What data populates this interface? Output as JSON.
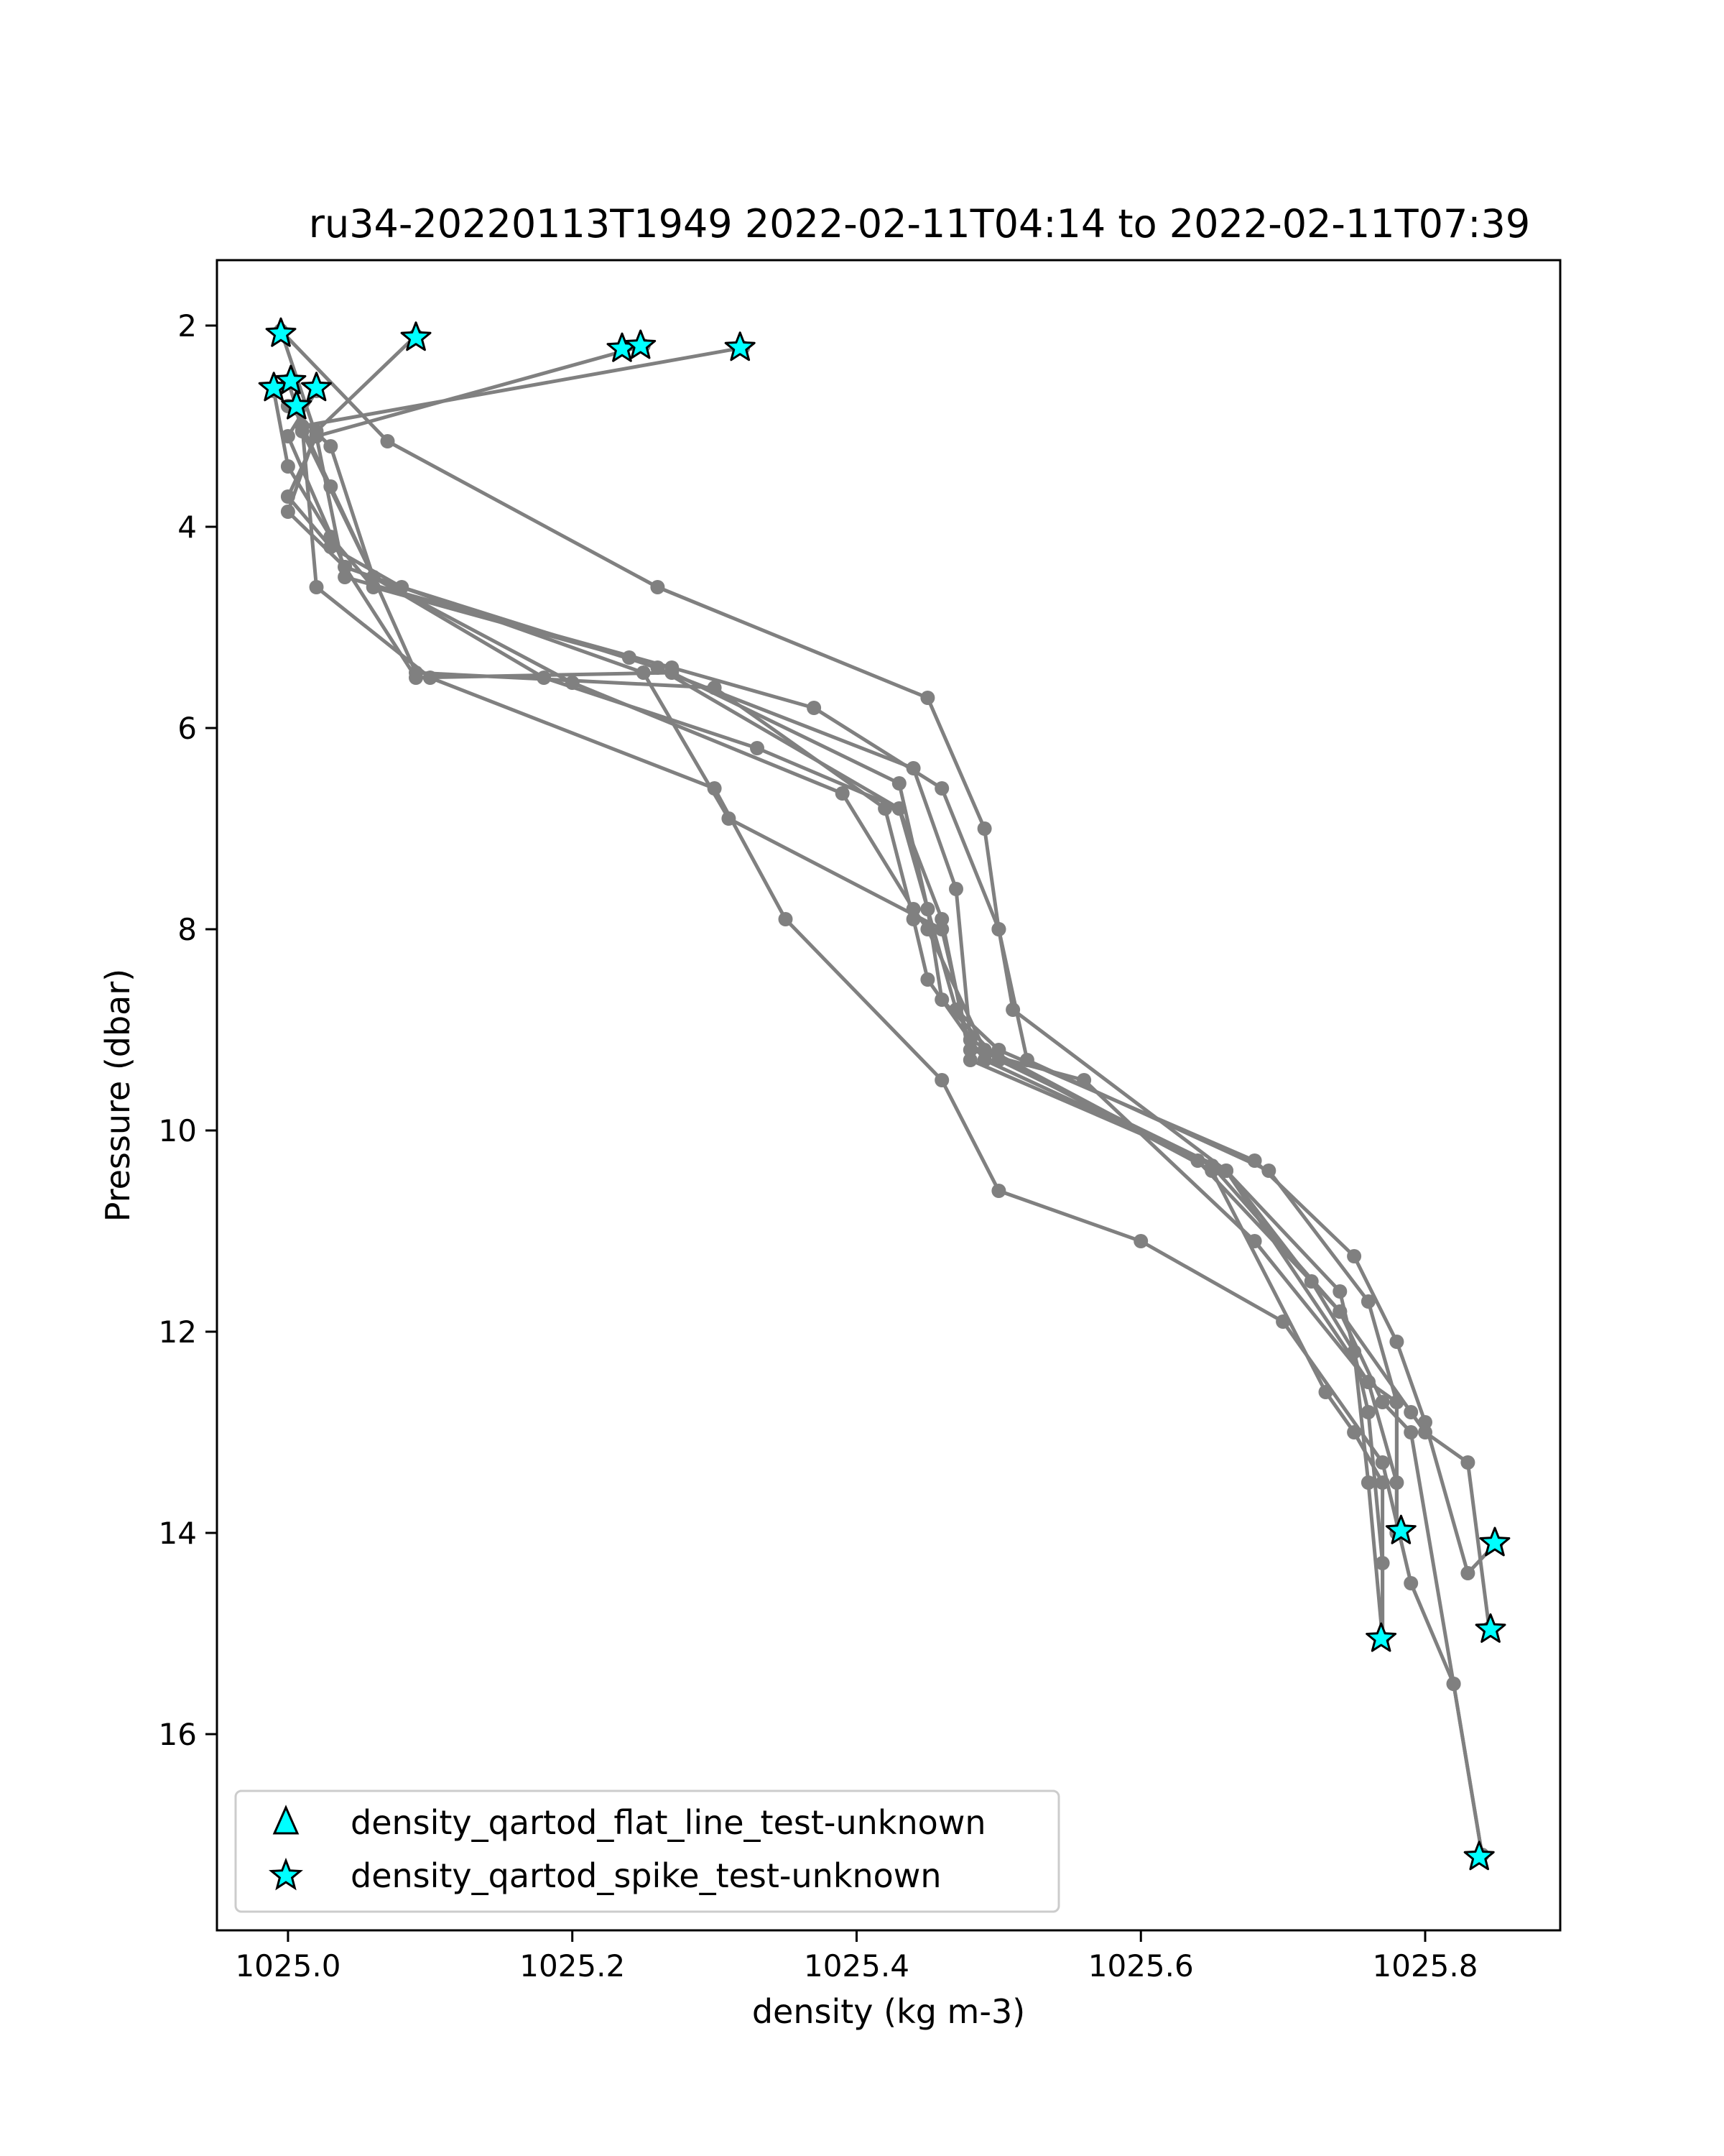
{
  "chart_data": {
    "type": "line",
    "title": "ru34-20220113T1949 2022-02-11T04:14 to 2022-02-11T07:39",
    "xlabel": "density (kg m-3)",
    "ylabel": "Pressure (dbar)",
    "xlim": [
      1024.95,
      1025.895
    ],
    "ylim": [
      17.95,
      1.35
    ],
    "y_inverted": true,
    "grid": false,
    "x_ticks": [
      1025.0,
      1025.2,
      1025.4,
      1025.6,
      1025.8
    ],
    "x_tick_labels": [
      "1025.0",
      "1025.2",
      "1025.4",
      "1025.6",
      "1025.8"
    ],
    "y_ticks": [
      2,
      4,
      6,
      8,
      10,
      12,
      14,
      16
    ],
    "y_tick_labels": [
      "2",
      "4",
      "6",
      "8",
      "10",
      "12",
      "14",
      "16"
    ],
    "line_color": "#808080",
    "marker_fill": "#00ffff",
    "legend": {
      "placement": "lower-left",
      "entries": [
        {
          "label": "density_qartod_flat_line_test-unknown",
          "marker": "triangle"
        },
        {
          "label": "density_qartod_spike_test-unknown",
          "marker": "star"
        }
      ]
    },
    "profiles": [
      {
        "x": [
          1025.0,
          1025.03,
          1025.06,
          1025.18,
          1025.33,
          1025.43,
          1025.45,
          1025.46,
          1025.5,
          1025.66,
          1025.76,
          1025.78,
          1025.78
        ],
        "y": [
          2.8,
          3.2,
          4.5,
          5.5,
          6.2,
          6.8,
          7.8,
          8.7,
          9.3,
          10.4,
          12.5,
          13.5,
          14.0
        ]
      },
      {
        "x": [
          1024.995,
          1025.02,
          1025.04,
          1025.27,
          1025.37,
          1025.46,
          1025.5,
          1025.52,
          1025.69,
          1025.76,
          1025.78,
          1025.78
        ],
        "y": [
          2.05,
          3.1,
          4.5,
          5.4,
          5.8,
          6.6,
          8.0,
          9.3,
          10.4,
          11.7,
          12.7,
          14.0
        ]
      },
      {
        "x": [
          1024.99,
          1025.0,
          1025.03,
          1025.06,
          1025.24,
          1025.44,
          1025.47,
          1025.48,
          1025.64,
          1025.74,
          1025.77,
          1025.79,
          1025.82,
          1025.84
        ],
        "y": [
          2.65,
          3.4,
          4.1,
          4.6,
          5.3,
          6.4,
          7.6,
          9.1,
          10.3,
          11.8,
          12.7,
          13.0,
          15.5,
          17.2
        ]
      },
      {
        "x": [
          1025.0,
          1025.01,
          1025.02,
          1025.1,
          1025.3,
          1025.35,
          1025.46,
          1025.5,
          1025.6,
          1025.7,
          1025.77,
          1025.79,
          1025.82,
          1025.84
        ],
        "y": [
          2.55,
          3.0,
          4.6,
          5.5,
          6.6,
          7.9,
          9.5,
          10.6,
          11.1,
          11.9,
          13.3,
          14.5,
          15.5,
          17.2
        ]
      },
      {
        "x": [
          1025.02,
          1025.0,
          1025.04,
          1025.09,
          1025.27,
          1025.43,
          1025.45,
          1025.47,
          1025.5,
          1025.68,
          1025.75,
          1025.78,
          1025.8,
          1025.83,
          1025.85
        ],
        "y": [
          2.65,
          3.1,
          4.4,
          5.5,
          5.45,
          6.55,
          7.8,
          8.8,
          9.2,
          10.3,
          11.25,
          12.1,
          12.9,
          14.4,
          14.1
        ]
      },
      {
        "x": [
          1025.005,
          1025.01,
          1025.06,
          1025.09,
          1025.3,
          1025.42,
          1025.44,
          1025.45,
          1025.49,
          1025.65,
          1025.74,
          1025.79,
          1025.8,
          1025.83,
          1025.845
        ],
        "y": [
          2.8,
          3.05,
          4.5,
          5.45,
          5.6,
          6.8,
          7.9,
          8.5,
          9.3,
          10.35,
          11.8,
          12.8,
          13.0,
          13.3,
          14.95
        ]
      },
      {
        "x": [
          1025.09,
          1025.02,
          1025.0,
          1025.04,
          1025.25,
          1025.31,
          1025.46,
          1025.48,
          1025.56,
          1025.68,
          1025.76,
          1025.78,
          1025.78
        ],
        "y": [
          2.1,
          3.05,
          3.85,
          4.4,
          5.45,
          6.9,
          8.0,
          9.2,
          9.5,
          11.1,
          12.5,
          12.7,
          14.0
        ]
      },
      {
        "x": [
          1025.25,
          1025.02,
          1025.0,
          1025.03,
          1025.08,
          1025.26,
          1025.43,
          1025.46,
          1025.48,
          1025.66,
          1025.74,
          1025.76,
          1025.77,
          1025.77
        ],
        "y": [
          2.2,
          3.1,
          3.7,
          4.2,
          4.6,
          5.4,
          6.8,
          7.9,
          9.3,
          10.4,
          11.6,
          12.8,
          14.3,
          15.05
        ]
      },
      {
        "x": [
          1025.32,
          1025.01,
          1025.03,
          1025.06,
          1025.2,
          1025.39,
          1025.44,
          1025.45,
          1025.49,
          1025.65,
          1025.73,
          1025.75,
          1025.77,
          1025.77
        ],
        "y": [
          2.22,
          3.0,
          3.6,
          4.5,
          5.55,
          6.65,
          7.8,
          8.0,
          9.2,
          10.4,
          12.6,
          13.0,
          13.5,
          15.05
        ]
      },
      {
        "x": [
          1024.995,
          1025.07,
          1025.26,
          1025.45,
          1025.49,
          1025.5,
          1025.51,
          1025.66,
          1025.72,
          1025.75,
          1025.76,
          1025.77
        ],
        "y": [
          2.05,
          3.15,
          4.6,
          5.7,
          7.0,
          8.0,
          8.8,
          10.4,
          11.5,
          12.2,
          13.5,
          15.05
        ]
      }
    ],
    "spike_flags": [
      {
        "x": 1024.995,
        "y": 2.08
      },
      {
        "x": 1025.09,
        "y": 2.12
      },
      {
        "x": 1025.235,
        "y": 2.23
      },
      {
        "x": 1025.248,
        "y": 2.2
      },
      {
        "x": 1025.318,
        "y": 2.22
      },
      {
        "x": 1024.99,
        "y": 2.62
      },
      {
        "x": 1025.002,
        "y": 2.55
      },
      {
        "x": 1025.02,
        "y": 2.62
      },
      {
        "x": 1025.006,
        "y": 2.8
      },
      {
        "x": 1025.783,
        "y": 13.98
      },
      {
        "x": 1025.849,
        "y": 14.1
      },
      {
        "x": 1025.846,
        "y": 14.96
      },
      {
        "x": 1025.769,
        "y": 15.05
      },
      {
        "x": 1025.838,
        "y": 17.22
      }
    ]
  }
}
